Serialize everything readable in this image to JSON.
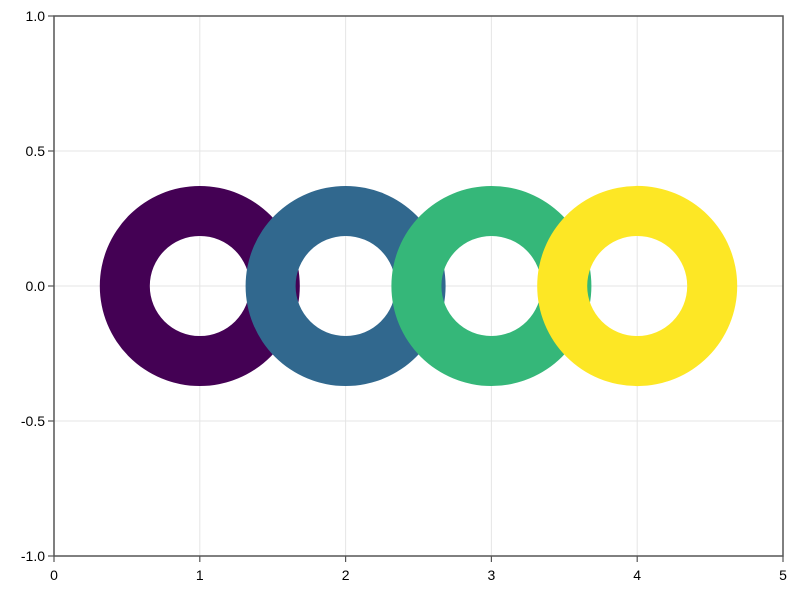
{
  "chart_data": {
    "type": "scatter",
    "marker": "ring",
    "title": "",
    "xlabel": "",
    "ylabel": "",
    "xlim": [
      0,
      5
    ],
    "ylim": [
      -1.0,
      1.0
    ],
    "xticks": [
      0,
      1,
      2,
      3,
      4,
      5
    ],
    "xtick_labels": [
      "0",
      "1",
      "2",
      "3",
      "4",
      "5"
    ],
    "yticks": [
      -1.0,
      -0.5,
      0.0,
      0.5,
      1.0
    ],
    "ytick_labels": [
      "-1.0",
      "-0.5",
      "0.0",
      "0.5",
      "1.0"
    ],
    "grid": true,
    "legend": "none",
    "points": [
      {
        "x": 1,
        "y": 0,
        "color": "#440154"
      },
      {
        "x": 2,
        "y": 0,
        "color": "#31688e"
      },
      {
        "x": 3,
        "y": 0,
        "color": "#35b779"
      },
      {
        "x": 4,
        "y": 0,
        "color": "#fde725"
      }
    ],
    "colors": {
      "grid": "#e5e5e5",
      "axis": "#555555",
      "tick_text": "#000000"
    }
  }
}
